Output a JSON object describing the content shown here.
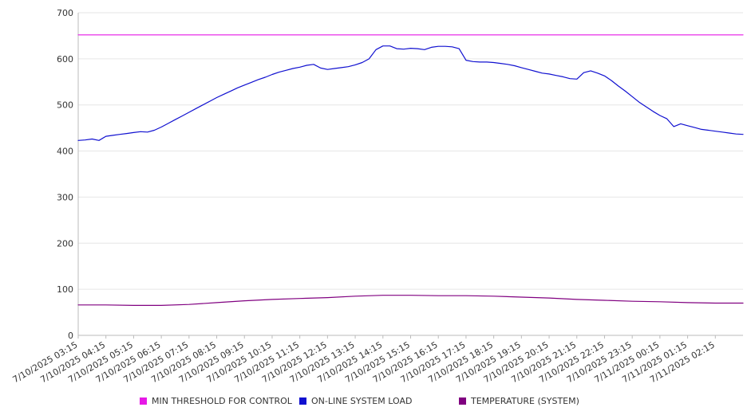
{
  "chart_data": {
    "type": "line",
    "title": "",
    "xlabel": "",
    "ylabel": "",
    "ylim": [
      0,
      700
    ],
    "y_ticks": [
      0,
      100,
      200,
      300,
      400,
      500,
      600,
      700
    ],
    "grid": true,
    "legend_position": "bottom",
    "x_start": "7/10/2025 03:15",
    "x_end": "7/11/2025 03:15",
    "x_tick_labels": [
      "7/10/2025 03:15",
      "7/10/2025 04:15",
      "7/10/2025 05:15",
      "7/10/2025 06:15",
      "7/10/2025 07:15",
      "7/10/2025 08:15",
      "7/10/2025 09:15",
      "7/10/2025 10:15",
      "7/10/2025 11:15",
      "7/10/2025 12:15",
      "7/10/2025 13:15",
      "7/10/2025 14:15",
      "7/10/2025 15:15",
      "7/10/2025 16:15",
      "7/10/2025 17:15",
      "7/10/2025 18:15",
      "7/10/2025 19:15",
      "7/10/2025 20:15",
      "7/10/2025 21:15",
      "7/10/2025 22:15",
      "7/10/2025 23:15",
      "7/11/2025 00:15",
      "7/11/2025 01:15",
      "7/11/2025 02:15"
    ],
    "series": [
      {
        "name": "MIN THRESHOLD FOR CONTROL",
        "color": "#e619e6",
        "x": [
          "7/10/2025 03:15",
          "7/11/2025 03:15"
        ],
        "values": [
          652,
          652
        ]
      },
      {
        "name": "ON-LINE SYSTEM LOAD",
        "color": "#1010d0",
        "x": [
          "7/10/2025 03:15",
          "7/10/2025 03:30",
          "7/10/2025 03:45",
          "7/10/2025 04:00",
          "7/10/2025 04:15",
          "7/10/2025 04:30",
          "7/10/2025 04:45",
          "7/10/2025 05:00",
          "7/10/2025 05:15",
          "7/10/2025 05:30",
          "7/10/2025 05:45",
          "7/10/2025 06:00",
          "7/10/2025 06:15",
          "7/10/2025 06:30",
          "7/10/2025 06:45",
          "7/10/2025 07:00",
          "7/10/2025 07:15",
          "7/10/2025 07:30",
          "7/10/2025 07:45",
          "7/10/2025 08:00",
          "7/10/2025 08:15",
          "7/10/2025 08:30",
          "7/10/2025 08:45",
          "7/10/2025 09:00",
          "7/10/2025 09:15",
          "7/10/2025 09:30",
          "7/10/2025 09:45",
          "7/10/2025 10:00",
          "7/10/2025 10:15",
          "7/10/2025 10:30",
          "7/10/2025 10:45",
          "7/10/2025 11:00",
          "7/10/2025 11:15",
          "7/10/2025 11:30",
          "7/10/2025 11:45",
          "7/10/2025 12:00",
          "7/10/2025 12:15",
          "7/10/2025 12:30",
          "7/10/2025 12:45",
          "7/10/2025 13:00",
          "7/10/2025 13:15",
          "7/10/2025 13:30",
          "7/10/2025 13:45",
          "7/10/2025 14:00",
          "7/10/2025 14:15",
          "7/10/2025 14:30",
          "7/10/2025 14:45",
          "7/10/2025 15:00",
          "7/10/2025 15:15",
          "7/10/2025 15:30",
          "7/10/2025 15:45",
          "7/10/2025 16:00",
          "7/10/2025 16:15",
          "7/10/2025 16:30",
          "7/10/2025 16:45",
          "7/10/2025 17:00",
          "7/10/2025 17:15",
          "7/10/2025 17:30",
          "7/10/2025 17:45",
          "7/10/2025 18:00",
          "7/10/2025 18:15",
          "7/10/2025 18:30",
          "7/10/2025 18:45",
          "7/10/2025 19:00",
          "7/10/2025 19:15",
          "7/10/2025 19:30",
          "7/10/2025 19:45",
          "7/10/2025 20:00",
          "7/10/2025 20:15",
          "7/10/2025 20:30",
          "7/10/2025 20:45",
          "7/10/2025 21:00",
          "7/10/2025 21:15",
          "7/10/2025 21:30",
          "7/10/2025 21:45",
          "7/10/2025 22:00",
          "7/10/2025 22:15",
          "7/10/2025 22:30",
          "7/10/2025 22:45",
          "7/10/2025 23:00",
          "7/10/2025 23:15",
          "7/10/2025 23:30",
          "7/10/2025 23:45",
          "7/11/2025 00:00",
          "7/11/2025 00:15",
          "7/11/2025 00:30",
          "7/11/2025 00:45",
          "7/11/2025 01:00",
          "7/11/2025 01:15",
          "7/11/2025 01:30",
          "7/11/2025 01:45",
          "7/11/2025 02:00",
          "7/11/2025 02:15",
          "7/11/2025 02:30",
          "7/11/2025 02:45",
          "7/11/2025 03:00",
          "7/11/2025 03:15"
        ],
        "values": [
          423,
          424,
          426,
          423,
          432,
          434,
          436,
          438,
          440,
          442,
          441,
          445,
          452,
          460,
          468,
          476,
          484,
          492,
          500,
          508,
          516,
          523,
          530,
          537,
          543,
          549,
          555,
          560,
          566,
          571,
          575,
          579,
          582,
          586,
          588,
          580,
          577,
          579,
          581,
          583,
          587,
          592,
          600,
          620,
          628,
          628,
          622,
          621,
          623,
          622,
          620,
          625,
          627,
          627,
          626,
          622,
          597,
          594,
          593,
          593,
          592,
          590,
          588,
          585,
          581,
          577,
          573,
          569,
          567,
          564,
          561,
          557,
          556,
          570,
          574,
          569,
          563,
          553,
          541,
          530,
          518,
          506,
          496,
          486,
          477,
          470,
          453,
          459,
          455,
          451,
          447,
          445,
          443,
          441,
          439,
          437,
          436
        ]
      },
      {
        "name": "TEMPERATURE (SYSTEM)",
        "color": "#800080",
        "x": [
          "7/10/2025 03:15",
          "7/10/2025 04:15",
          "7/10/2025 05:15",
          "7/10/2025 06:15",
          "7/10/2025 07:15",
          "7/10/2025 08:15",
          "7/10/2025 09:15",
          "7/10/2025 10:15",
          "7/10/2025 11:15",
          "7/10/2025 12:15",
          "7/10/2025 13:15",
          "7/10/2025 14:15",
          "7/10/2025 15:15",
          "7/10/2025 16:15",
          "7/10/2025 17:15",
          "7/10/2025 18:15",
          "7/10/2025 19:15",
          "7/10/2025 20:15",
          "7/10/2025 21:15",
          "7/10/2025 22:15",
          "7/10/2025 23:15",
          "7/11/2025 00:15",
          "7/11/2025 01:15",
          "7/11/2025 02:15",
          "7/11/2025 03:15"
        ],
        "values": [
          66,
          66,
          65,
          65,
          67,
          71,
          75,
          78,
          80,
          82,
          85,
          87,
          87,
          86,
          86,
          85,
          83,
          81,
          78,
          76,
          74,
          73,
          71,
          70,
          70
        ]
      }
    ]
  }
}
